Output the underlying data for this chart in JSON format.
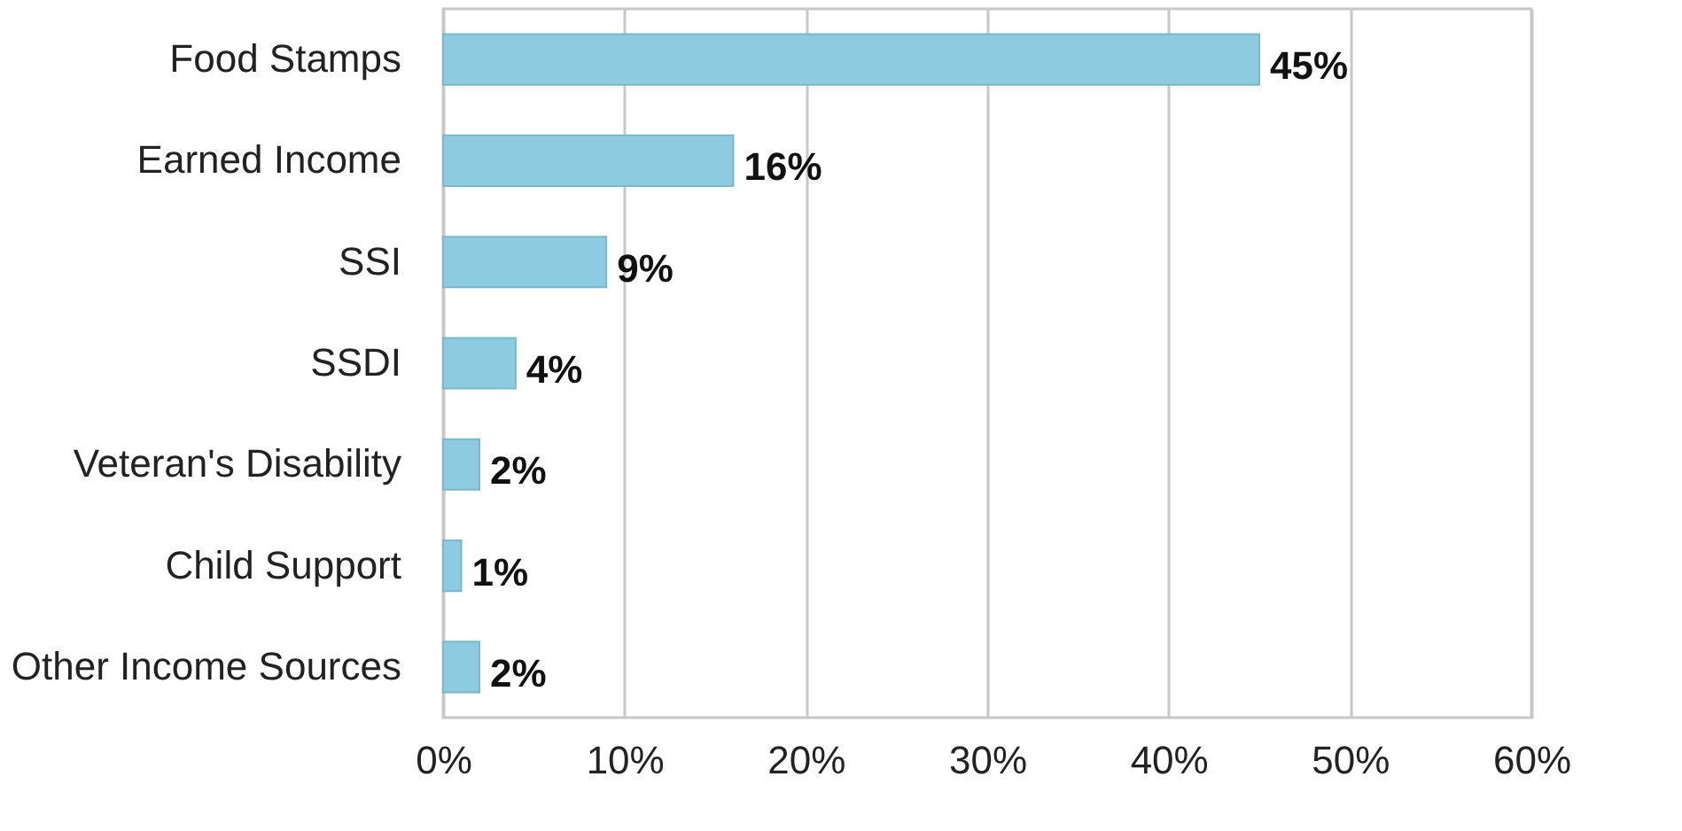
{
  "chart_data": {
    "type": "bar",
    "orientation": "horizontal",
    "categories": [
      "Food Stamps",
      "Earned Income",
      "SSI",
      "SSDI",
      "Veteran's Disability",
      "Child Support",
      "Other Income Sources"
    ],
    "values": [
      45,
      16,
      9,
      4,
      2,
      1,
      2
    ],
    "value_labels": [
      "45%",
      "16%",
      "9%",
      "4%",
      "2%",
      "1%",
      "2%"
    ],
    "color": "#8ccbe0",
    "xlim": [
      0,
      60
    ],
    "xticks": [
      {
        "value": 0,
        "label": "0%"
      },
      {
        "value": 10,
        "label": "10%"
      },
      {
        "value": 20,
        "label": "20%"
      },
      {
        "value": 30,
        "label": "30%"
      },
      {
        "value": 40,
        "label": "40%"
      },
      {
        "value": 50,
        "label": "50%"
      },
      {
        "value": 60,
        "label": "60%"
      }
    ],
    "grid": "x"
  }
}
